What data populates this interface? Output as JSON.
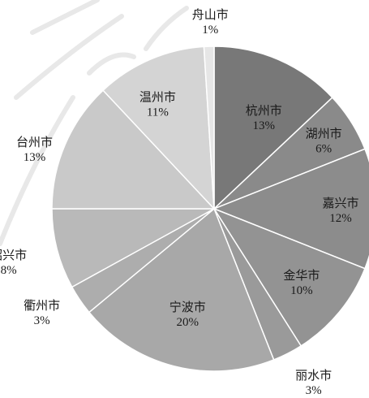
{
  "chart_data": {
    "type": "pie",
    "title": "",
    "unit": "%",
    "slices": [
      {
        "name": "杭州市",
        "value": 13,
        "label": "13%",
        "color": "#787878"
      },
      {
        "name": "湖州市",
        "value": 6,
        "label": "6%",
        "color": "#8a8a8a"
      },
      {
        "name": "嘉兴市",
        "value": 12,
        "label": "12%",
        "color": "#8c8c8c"
      },
      {
        "name": "金华市",
        "value": 10,
        "label": "10%",
        "color": "#939393"
      },
      {
        "name": "丽水市",
        "value": 3,
        "label": "3%",
        "color": "#9a9a9a"
      },
      {
        "name": "宁波市",
        "value": 20,
        "label": "20%",
        "color": "#a8a8a8"
      },
      {
        "name": "衢州市",
        "value": 3,
        "label": "3%",
        "color": "#adadad"
      },
      {
        "name": "绍兴市",
        "value": 8,
        "label": "8%",
        "color": "#b9b9b9"
      },
      {
        "name": "台州市",
        "value": 13,
        "label": "13%",
        "color": "#c9c9c9"
      },
      {
        "name": "温州市",
        "value": 11,
        "label": "11%",
        "color": "#d4d4d4"
      },
      {
        "name": "舟山市",
        "value": 1,
        "label": "1%",
        "color": "#e6e6e6"
      }
    ],
    "start_angle": "12 o'clock",
    "direction": "clockwise",
    "legend": "none",
    "labels": "category and percent on or beside each slice",
    "slice_border_color": "#ffffff"
  }
}
